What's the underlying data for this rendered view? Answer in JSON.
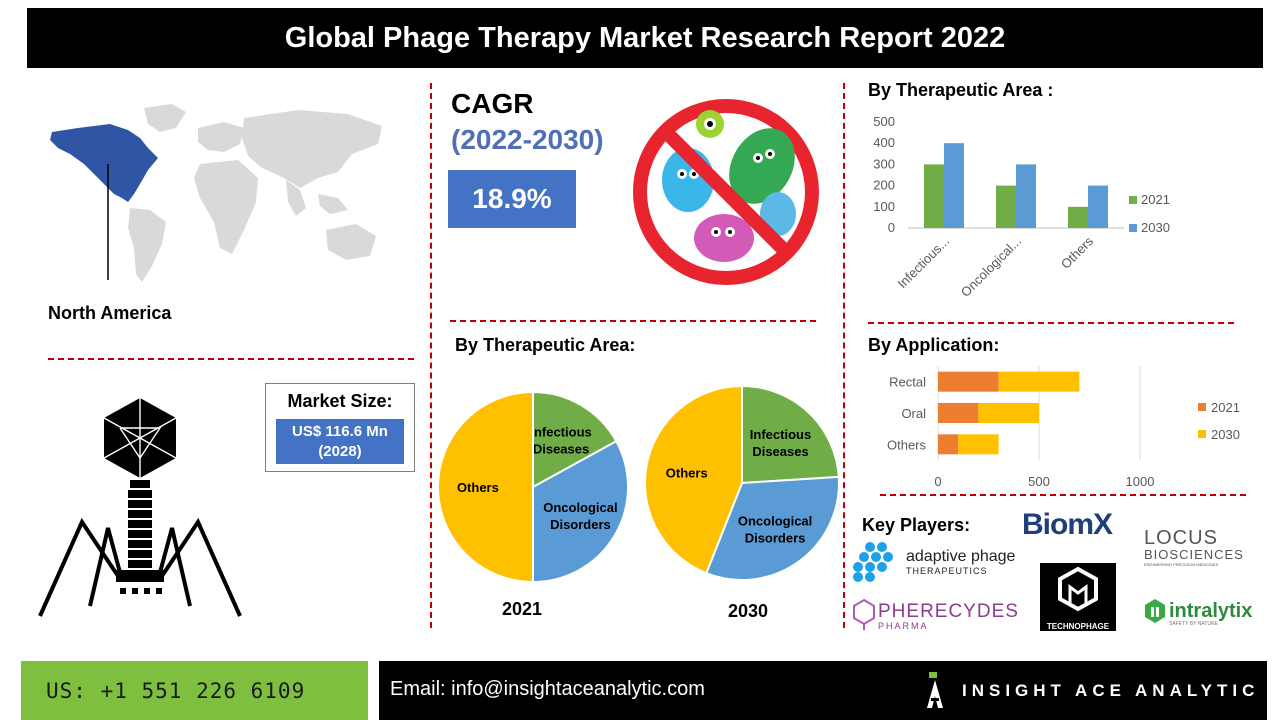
{
  "header": {
    "title": "Global Phage Therapy Market Research Report 2022"
  },
  "region": {
    "label": "North America"
  },
  "cagr": {
    "title": "CAGR",
    "period": "(2022-2030)",
    "value": "18.9%"
  },
  "market_size": {
    "label": "Market Size:",
    "value_line1": "US$ 116.6 Mn",
    "value_line2": "(2028)"
  },
  "sections": {
    "bar_therapeutic_title": "By Therapeutic Area :",
    "pie_therapeutic_title": "By Therapeutic Area:",
    "application_title": "By Application:",
    "key_players_title": "Key Players:"
  },
  "key_players": {
    "biomx": "BiomX",
    "locus_line1": "LOCUS",
    "locus_line2": "BIOSCIENCES",
    "locus_tagline": "ENGINEERING PRECISION MEDICINES",
    "adaptive_line1": "adaptive phage",
    "adaptive_line2": "THERAPEUTICS",
    "pherecydes_line1": "PHERECYDES",
    "pherecydes_line2": "PHARMA",
    "technophage": "TECHNOPHAGE",
    "intralytix": "intralytix",
    "intralytix_tagline": "SAFETY BY NATURE"
  },
  "footer": {
    "phone": "US: +1 551 226 6109",
    "email": "Email: info@insightaceanalytic.com",
    "brand": "INSIGHT ACE ANALYTIC"
  },
  "colors": {
    "green": "#70ad47",
    "blue": "#5b9bd5",
    "orange": "#ed7d31",
    "yellow": "#ffc000",
    "accent_blue": "#4472c4",
    "dash_red": "#c00000"
  },
  "chart_data": [
    {
      "type": "bar",
      "title": "By Therapeutic Area :",
      "categories": [
        "Infectious...",
        "Oncological...",
        "Others"
      ],
      "series": [
        {
          "name": "2021",
          "values": [
            300,
            200,
            100
          ],
          "color": "#70ad47"
        },
        {
          "name": "2030",
          "values": [
            400,
            300,
            200
          ],
          "color": "#5b9bd5"
        }
      ],
      "ylim": [
        0,
        500
      ],
      "yticks": [
        "0",
        "100",
        "200",
        "300",
        "400",
        "500"
      ],
      "legend": "right",
      "grid": false
    },
    {
      "type": "bar",
      "orientation": "horizontal-stacked",
      "title": "By Application:",
      "categories": [
        "Rectal",
        "Oral",
        "Others"
      ],
      "series": [
        {
          "name": "2021",
          "values": [
            300,
            200,
            100
          ],
          "color": "#ed7d31"
        },
        {
          "name": "2030",
          "values": [
            400,
            300,
            200
          ],
          "color": "#ffc000"
        }
      ],
      "xlim": [
        0,
        1000
      ],
      "xticks": [
        "0",
        "500",
        "1000"
      ],
      "legend": "right",
      "grid": true
    },
    {
      "type": "pie",
      "title": "2021",
      "slices": [
        {
          "label_line1": "Infectious",
          "label_line2": "Diseases",
          "value": 17,
          "color": "#70ad47"
        },
        {
          "label_line1": "Oncological",
          "label_line2": "Disorders",
          "value": 33,
          "color": "#5b9bd5"
        },
        {
          "label_line1": "Others",
          "label_line2": "",
          "value": 50,
          "color": "#ffc000"
        }
      ]
    },
    {
      "type": "pie",
      "title": "2030",
      "slices": [
        {
          "label_line1": "Infectious",
          "label_line2": "Diseases",
          "value": 24,
          "color": "#70ad47"
        },
        {
          "label_line1": "Oncological",
          "label_line2": "Disorders",
          "value": 32,
          "color": "#5b9bd5"
        },
        {
          "label_line1": "Others",
          "label_line2": "",
          "value": 44,
          "color": "#ffc000"
        }
      ]
    }
  ]
}
